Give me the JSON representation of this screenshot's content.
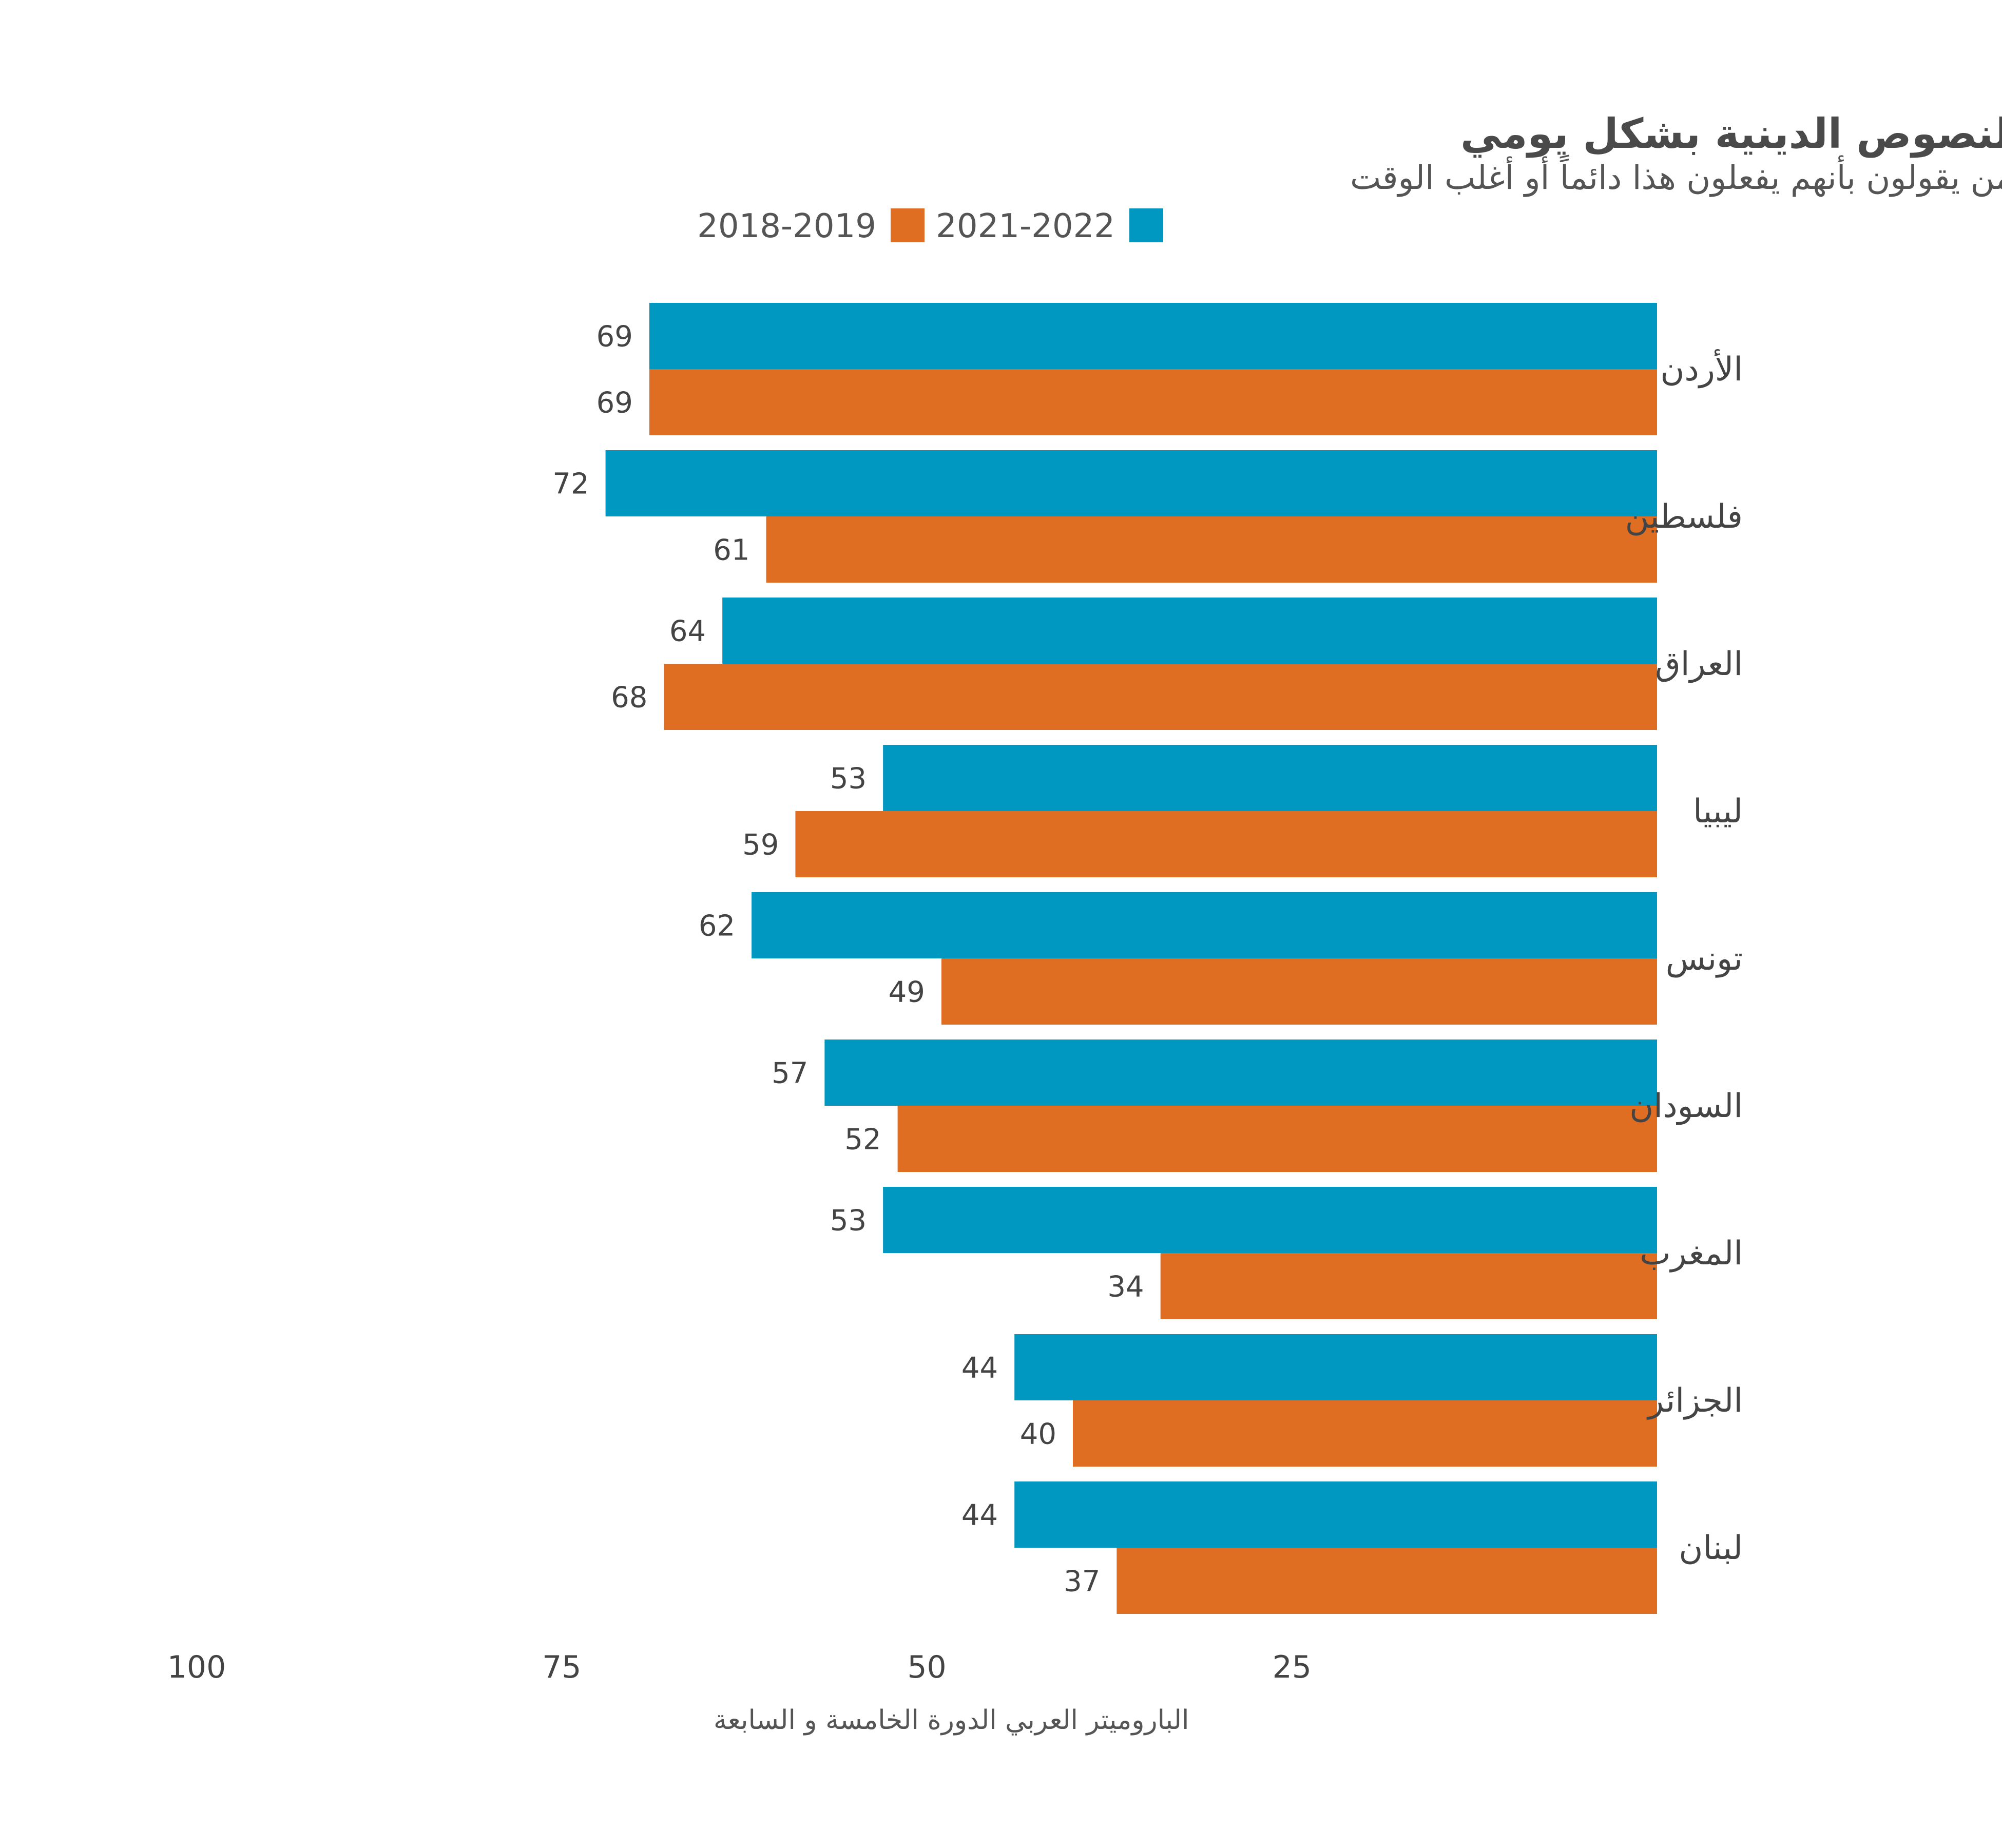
{
  "chart_data": {
    "type": "bar",
    "orientation": "horizontal",
    "title": "الاطلاع أو الاستماع إلى النصوص الدينية بشكل يومي",
    "subtitle": "من يقولون بأنهم يفعلون هذا دائماً أو أغلب الوقت",
    "categories": [
      "الأردن",
      "فلسطين",
      "العراق",
      "ليبيا",
      "تونس",
      "السودان",
      "المغرب",
      "الجزائر",
      "لبنان"
    ],
    "series": [
      {
        "name": "2021-2022",
        "color": "#0098c0",
        "values": [
          69,
          72,
          64,
          53,
          62,
          57,
          53,
          44,
          44
        ]
      },
      {
        "name": "2018-2019",
        "color": "#e06e22",
        "values": [
          69,
          61,
          68,
          59,
          49,
          52,
          34,
          40,
          37
        ]
      }
    ],
    "xlim": [
      0,
      100
    ],
    "x_reversed": true,
    "x_ticks": [
      100,
      75,
      50,
      25
    ],
    "grid": false,
    "legend_position": "top",
    "source": "الباروميتر العربي الدورة الخامسة و السابعة"
  }
}
